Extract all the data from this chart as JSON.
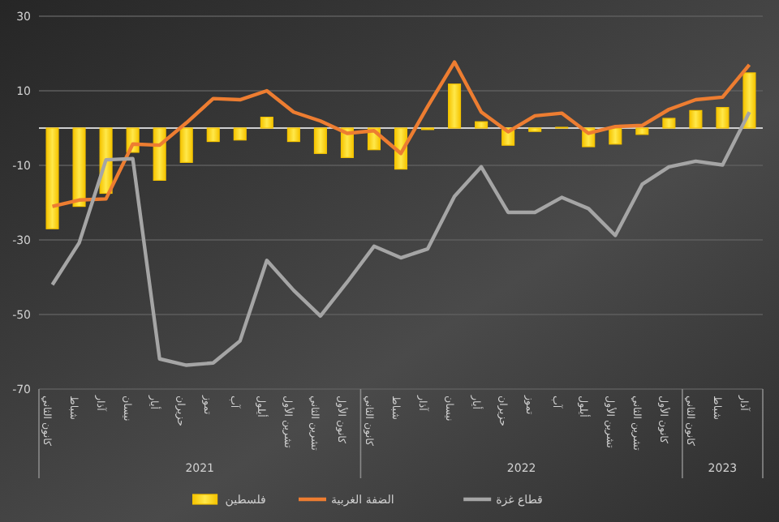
{
  "chart_data": {
    "type": "bar",
    "categories": [
      "كانون الثاني",
      "شباط",
      "آذار",
      "نيسان",
      "أيار",
      "حزيران",
      "تموز",
      "آب",
      "أيلول",
      "تشرين الأول",
      "تشرين الثاني",
      "كانون الأول",
      "كانون الثاني",
      "شباط",
      "آذار",
      "نيسان",
      "أيار",
      "حزيران",
      "تموز",
      "آب",
      "أيلول",
      "تشرين الأول",
      "تشرين الثاني",
      "كانون الأول",
      "كانون الثاني",
      "شباط",
      "آذار"
    ],
    "series": [
      {
        "name": "فلسطين",
        "color": "#f5c400",
        "values": [
          -27,
          -21,
          -17.5,
          -6.5,
          -14,
          -9.2,
          -3.6,
          -3.2,
          2.9,
          -3.6,
          -6.8,
          -7.9,
          -5.8,
          -11,
          -0.4,
          11.8,
          1.7,
          -4.6,
          -0.9,
          0.2,
          -5,
          -4.3,
          -1.7,
          2.6,
          4.7,
          5.5,
          14.8
        ]
      },
      {
        "name": "الضفة الغربية",
        "type": "line",
        "color": "#ed7d31",
        "values": [
          -21,
          -19.3,
          -19,
          -4.3,
          -4.6,
          1.4,
          7.9,
          7.6,
          10,
          4.3,
          1.9,
          -1.4,
          -0.7,
          -6.8,
          5.8,
          17.7,
          4.3,
          -1,
          3.3,
          4,
          -1.4,
          0.4,
          0.7,
          5,
          7.6,
          8.3,
          17
        ]
      },
      {
        "name": "قطاع غزة",
        "type": "line",
        "color": "#a5a5a5",
        "values": [
          -42,
          -30.8,
          -8.5,
          -8.2,
          -61.9,
          -63.6,
          -63,
          -57.1,
          -35.5,
          -43.5,
          -50.4,
          -41.3,
          -31.7,
          -34.8,
          -32.4,
          -18.3,
          -10.4,
          -22.6,
          -22.6,
          -18.6,
          -21.6,
          -28.8,
          -15.1,
          -10.4,
          -8.9,
          -9.9,
          4.3
        ]
      }
    ],
    "ylim": [
      -70,
      30
    ],
    "yticks": [
      -70,
      -50,
      -30,
      -10,
      10,
      30
    ],
    "grid": "y",
    "legend": "bottom",
    "marker": "none",
    "line_style": "solid",
    "annotations": [
      "2021",
      "2022",
      "2023"
    ]
  }
}
